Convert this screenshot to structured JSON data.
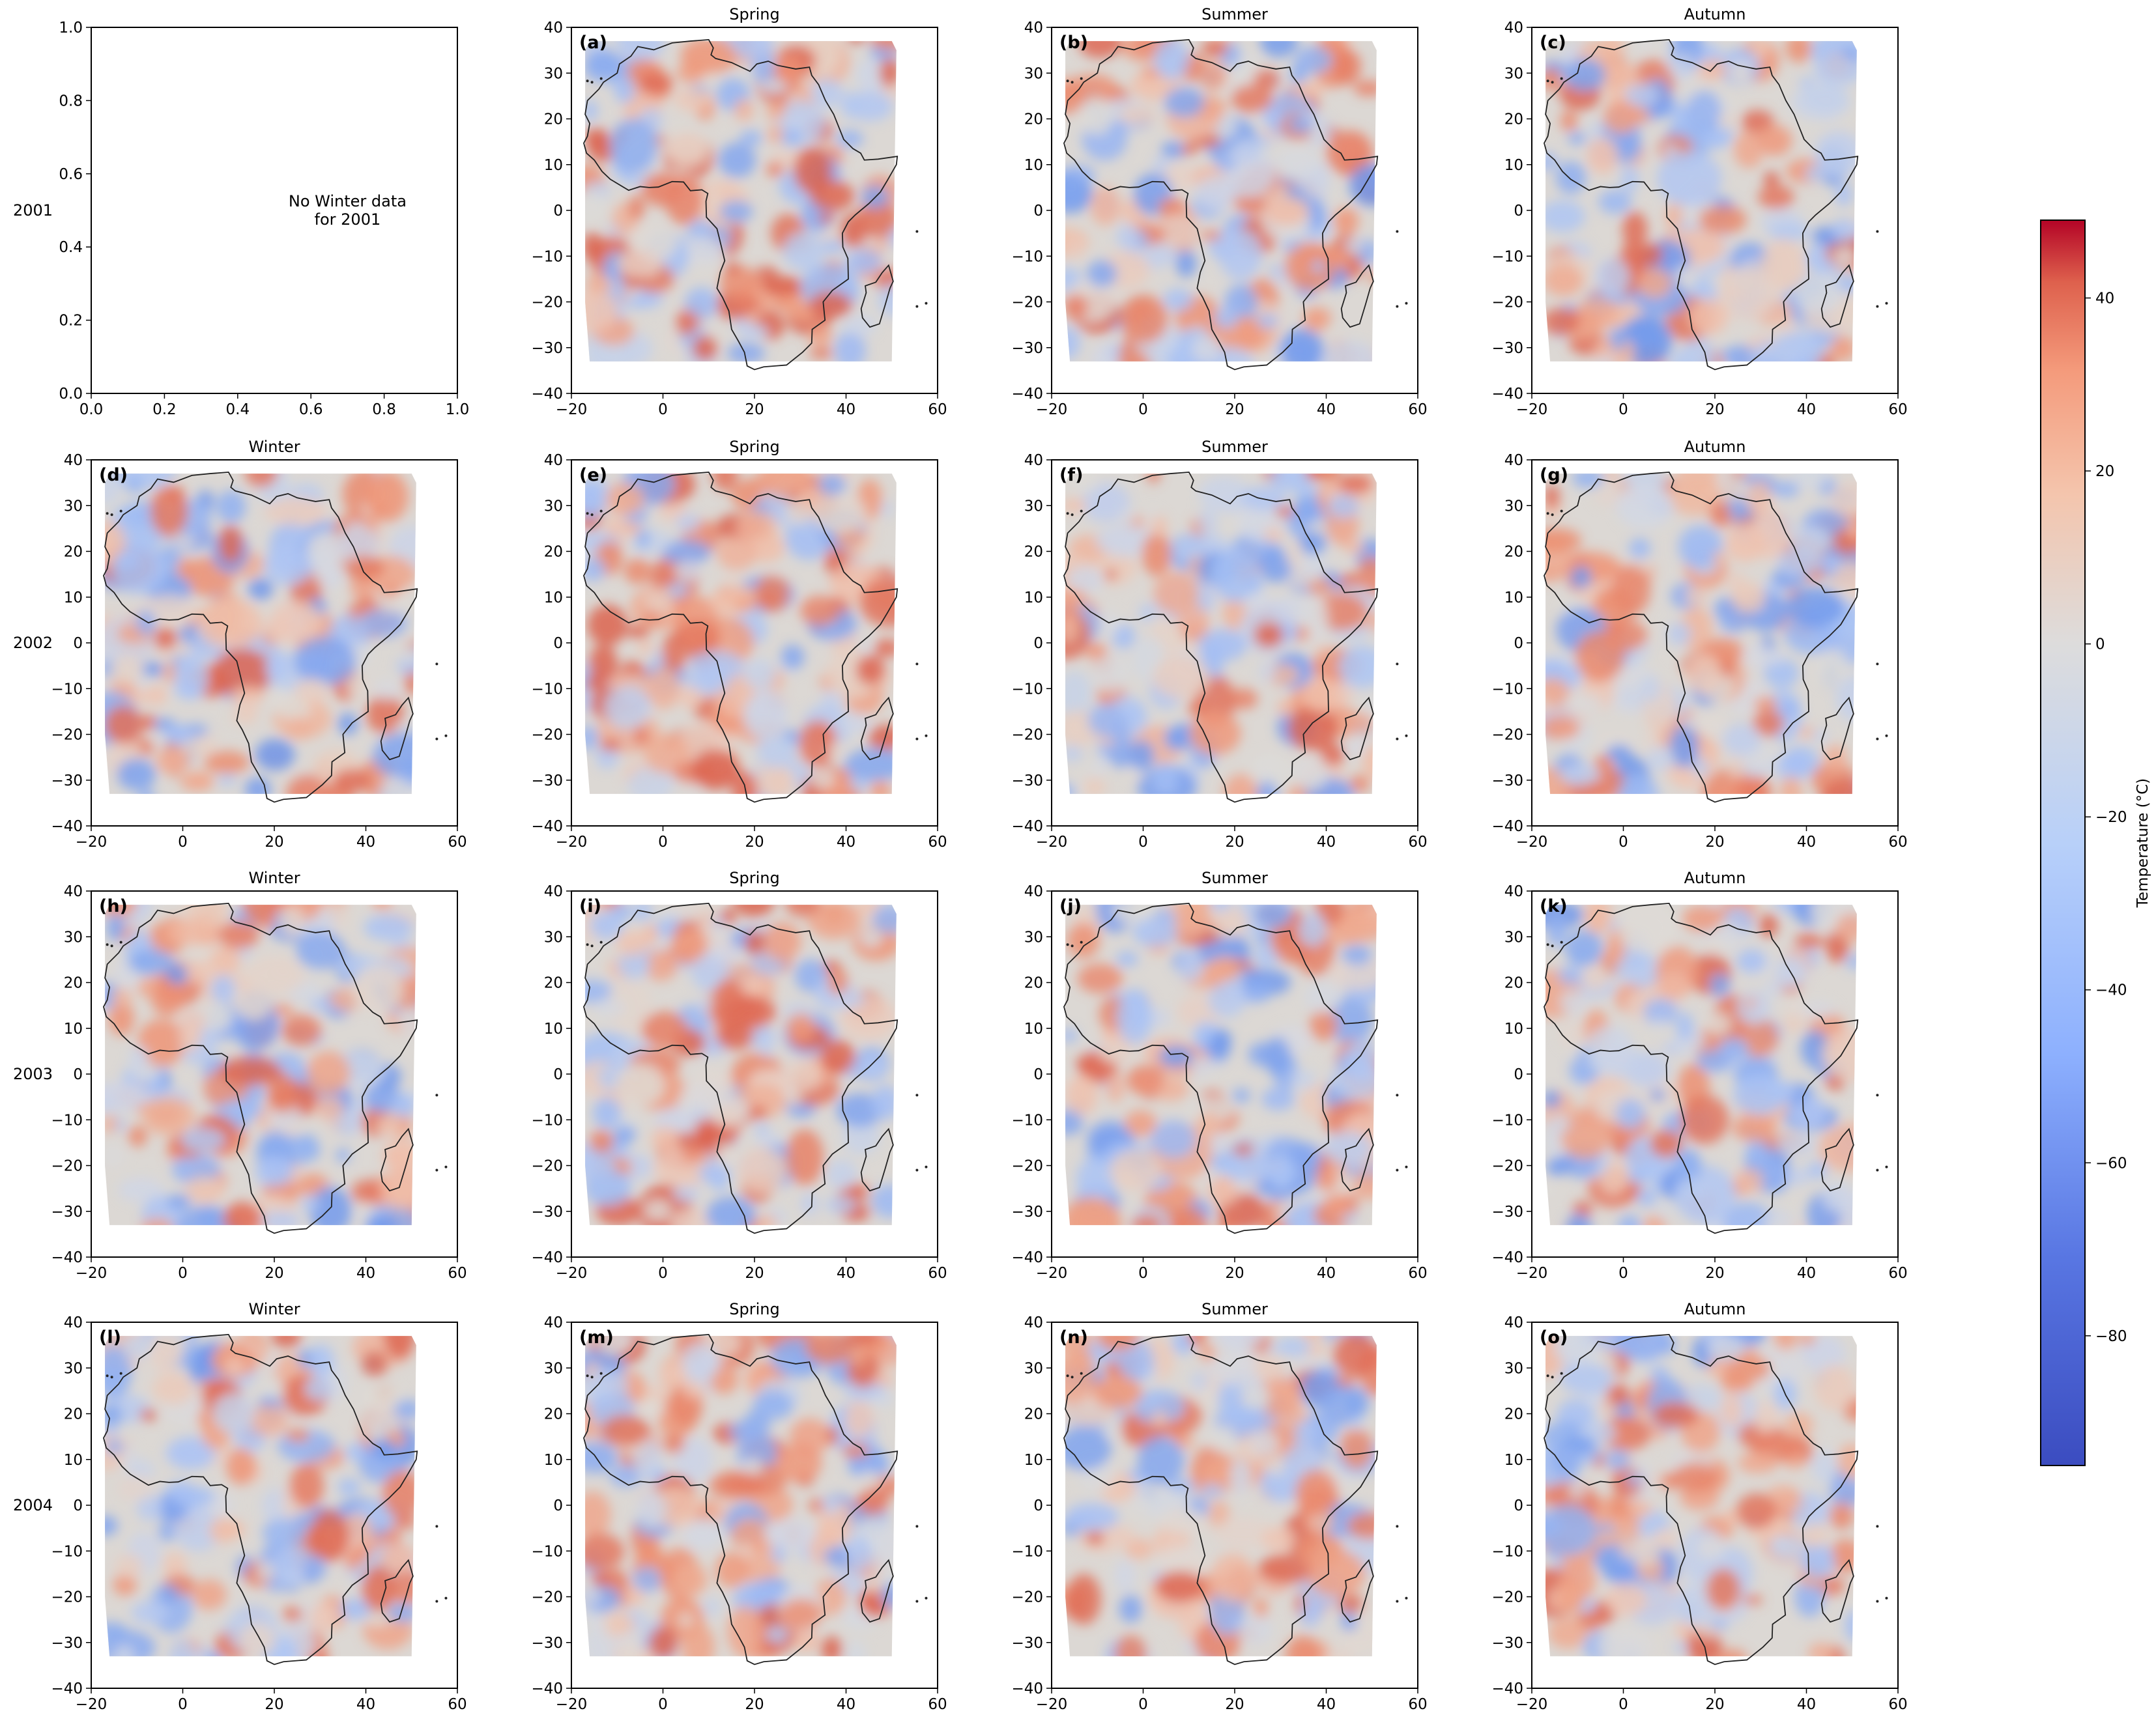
{
  "chart_data": {
    "type": "heatmap",
    "rows": [
      {
        "label": "2001",
        "panels": [
          {
            "season": "Winter",
            "label": "",
            "has_data": false,
            "message_lines": [
              "No Winter data",
              "for 2001"
            ],
            "title": ""
          },
          {
            "season": "Spring",
            "label": "(a)",
            "has_data": true,
            "title": "Spring"
          },
          {
            "season": "Summer",
            "label": "(b)",
            "has_data": true,
            "title": "Summer"
          },
          {
            "season": "Autumn",
            "label": "(c)",
            "has_data": true,
            "title": "Autumn"
          }
        ]
      },
      {
        "label": "2002",
        "panels": [
          {
            "season": "Winter",
            "label": "(d)",
            "has_data": true,
            "title": "Winter"
          },
          {
            "season": "Spring",
            "label": "(e)",
            "has_data": true,
            "title": "Spring"
          },
          {
            "season": "Summer",
            "label": "(f)",
            "has_data": true,
            "title": "Summer"
          },
          {
            "season": "Autumn",
            "label": "(g)",
            "has_data": true,
            "title": "Autumn"
          }
        ]
      },
      {
        "label": "2003",
        "panels": [
          {
            "season": "Winter",
            "label": "(h)",
            "has_data": true,
            "title": "Winter"
          },
          {
            "season": "Spring",
            "label": "(i)",
            "has_data": true,
            "title": "Spring"
          },
          {
            "season": "Summer",
            "label": "(j)",
            "has_data": true,
            "title": "Summer"
          },
          {
            "season": "Autumn",
            "label": "(k)",
            "has_data": true,
            "title": "Autumn"
          }
        ]
      },
      {
        "label": "2004",
        "panels": [
          {
            "season": "Winter",
            "label": "(l)",
            "has_data": true,
            "title": "Winter"
          },
          {
            "season": "Spring",
            "label": "(m)",
            "has_data": true,
            "title": "Spring"
          },
          {
            "season": "Summer",
            "label": "(n)",
            "has_data": true,
            "title": "Summer"
          },
          {
            "season": "Autumn",
            "label": "(o)",
            "has_data": true,
            "title": "Autumn"
          }
        ]
      }
    ],
    "map_axes": {
      "xlim": [
        -20,
        60
      ],
      "ylim": [
        -40,
        40
      ],
      "xticks": [
        "−20",
        "0",
        "20",
        "40",
        "60"
      ],
      "yticks": [
        "40",
        "30",
        "20",
        "10",
        "0",
        "−10",
        "−20",
        "−30",
        "−40"
      ]
    },
    "empty_axes": {
      "xlim": [
        0,
        1
      ],
      "ylim": [
        0,
        1
      ],
      "xticks": [
        "0.0",
        "0.2",
        "0.4",
        "0.6",
        "0.8",
        "1.0"
      ],
      "yticks": [
        "1.0",
        "0.8",
        "0.6",
        "0.4",
        "0.2",
        "0.0"
      ]
    },
    "colorbar": {
      "label": "Temperature (°C)",
      "range": [
        -95,
        49
      ],
      "ticks": [
        "40",
        "20",
        "0",
        "−20",
        "−40",
        "−60",
        "−80"
      ],
      "colormap": "coolwarm",
      "colors": {
        "low": "#3b4cc0",
        "mid": "#dddddd",
        "high": "#b40426"
      }
    },
    "grid": false,
    "legend": "colorbar-right"
  }
}
